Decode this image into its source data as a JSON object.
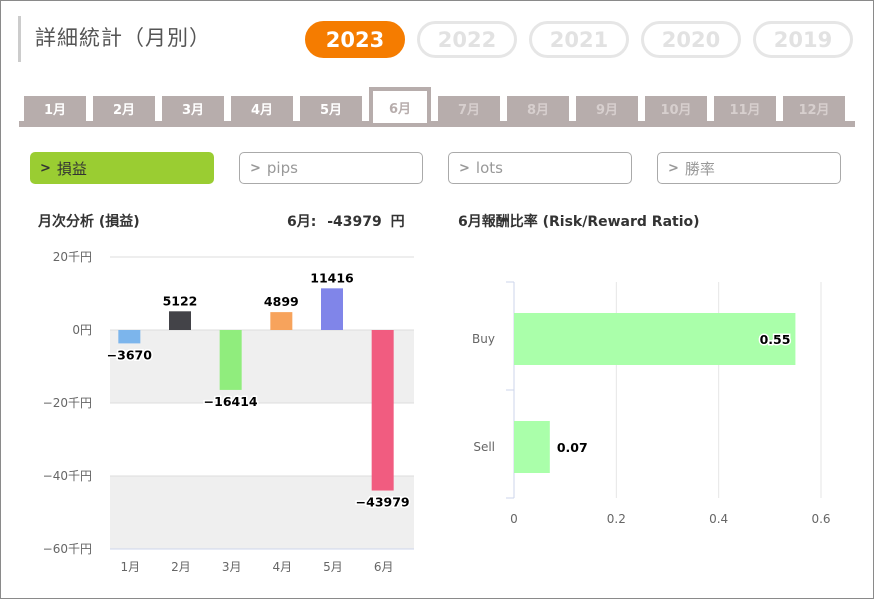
{
  "header": {
    "title": "詳細統計（月別）",
    "years": [
      {
        "label": "2023",
        "active": true
      },
      {
        "label": "2022",
        "active": false
      },
      {
        "label": "2021",
        "active": false
      },
      {
        "label": "2020",
        "active": false
      },
      {
        "label": "2019",
        "active": false
      }
    ]
  },
  "months": {
    "tabs": [
      "1月",
      "2月",
      "3月",
      "4月",
      "5月",
      "6月",
      "7月",
      "8月",
      "9月",
      "10月",
      "11月",
      "12月"
    ],
    "active_index": 5
  },
  "metrics": [
    {
      "label": "損益",
      "active": true
    },
    {
      "label": "pips",
      "active": false
    },
    {
      "label": "lots",
      "active": false
    },
    {
      "label": "勝率",
      "active": false
    }
  ],
  "monthly": {
    "title": "月次分析 (損益)",
    "summary_month": "6月:",
    "summary_value": "-43979",
    "summary_unit": "円"
  },
  "ratio": {
    "title": "6月報酬比率 (Risk/Reward Ratio)"
  },
  "chart_data": [
    {
      "type": "bar",
      "categories": [
        "1月",
        "2月",
        "3月",
        "4月",
        "5月",
        "6月"
      ],
      "values": [
        -3670,
        5122,
        -16414,
        4899,
        11416,
        -43979
      ],
      "value_labels": [
        "−3670",
        "5122",
        "−16414",
        "4899",
        "11416",
        "−43979"
      ],
      "colors": [
        "#7cb5ec",
        "#434348",
        "#90ed7d",
        "#f7a35c",
        "#8085e9",
        "#f15c80"
      ],
      "ylim": [
        -60000,
        20000
      ],
      "yticks": [
        20000,
        0,
        -20000,
        -40000,
        -60000
      ],
      "ytick_labels": [
        "20千円",
        "0円",
        "−20千円",
        "−40千円",
        "−60千円"
      ],
      "grid": true,
      "bands": true
    },
    {
      "type": "bar",
      "orientation": "horizontal",
      "categories": [
        "Buy",
        "Sell"
      ],
      "values": [
        0.55,
        0.07
      ],
      "value_labels": [
        "0.55",
        "0.07"
      ],
      "color": "#aaffaa",
      "xlim": [
        0,
        0.6
      ],
      "xticks": [
        0,
        0.2,
        0.4,
        0.6
      ],
      "xtick_labels": [
        "0",
        "0.2",
        "0.4",
        "0.6"
      ],
      "grid": true
    }
  ]
}
